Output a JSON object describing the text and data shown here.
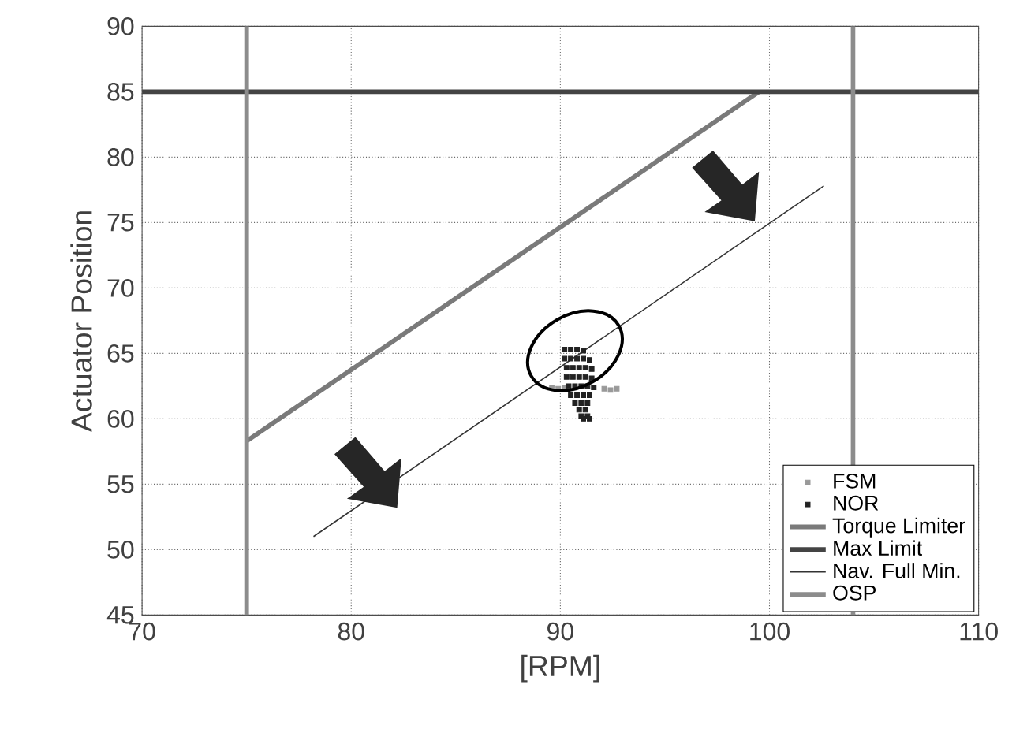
{
  "chart_data": {
    "type": "line",
    "xlabel": "[RPM]",
    "ylabel": "Actuator Position",
    "xlim": [
      70,
      110
    ],
    "ylim": [
      45,
      90
    ],
    "xticks": [
      70,
      80,
      90,
      100,
      110
    ],
    "yticks": [
      45,
      50,
      55,
      60,
      65,
      70,
      75,
      80,
      85,
      90
    ],
    "grid": true,
    "legend": "bottom right",
    "series": [
      {
        "name": "FSM",
        "type": "scatter",
        "marker": "square",
        "color": "#999999",
        "x": [
          89.6,
          89.9,
          90.2,
          92.1,
          92.4,
          92.7
        ],
        "values": [
          62.4,
          62.3,
          62.4,
          62.3,
          62.2,
          62.3
        ]
      },
      {
        "name": "NOR",
        "type": "scatter",
        "marker": "square",
        "color": "#222222",
        "x": [
          90.2,
          90.5,
          90.8,
          91.1,
          90.2,
          90.5,
          90.8,
          91.1,
          91.4,
          90.3,
          90.6,
          90.9,
          91.2,
          91.5,
          90.3,
          90.6,
          90.9,
          91.2,
          91.5,
          90.4,
          90.7,
          91.0,
          91.3,
          91.6,
          90.5,
          90.8,
          91.1,
          91.4,
          90.7,
          91.0,
          91.3,
          90.9,
          91.2,
          91.0,
          91.3,
          91.1,
          91.4
        ],
        "values": [
          65.3,
          65.3,
          65.3,
          65.2,
          64.6,
          64.6,
          64.6,
          64.6,
          64.5,
          63.9,
          63.9,
          63.9,
          63.9,
          63.8,
          63.2,
          63.2,
          63.2,
          63.2,
          63.1,
          62.5,
          62.5,
          62.5,
          62.5,
          62.4,
          61.8,
          61.8,
          61.8,
          61.8,
          61.2,
          61.2,
          61.2,
          60.7,
          60.7,
          60.2,
          60.2,
          60.0,
          60.0
        ]
      },
      {
        "name": "Torque Limiter",
        "color": "#7a7a7a",
        "x": [
          75,
          99.5
        ],
        "values": [
          58.3,
          85
        ]
      },
      {
        "name": "Max Limit",
        "color": "#444444",
        "x": [
          70,
          110
        ],
        "values": [
          85,
          85
        ]
      },
      {
        "name": "Nav. Full Min.",
        "color": "#333333",
        "x": [
          78.2,
          102.6
        ],
        "values": [
          51,
          77.8
        ]
      },
      {
        "name": "OSP",
        "color": "#8c8c8c",
        "x": [
          75,
          75
        ],
        "values": [
          45,
          90
        ]
      },
      {
        "color": "#8c8c8c",
        "x": [
          104,
          104
        ],
        "values": [
          90,
          45
        ]
      }
    ]
  }
}
